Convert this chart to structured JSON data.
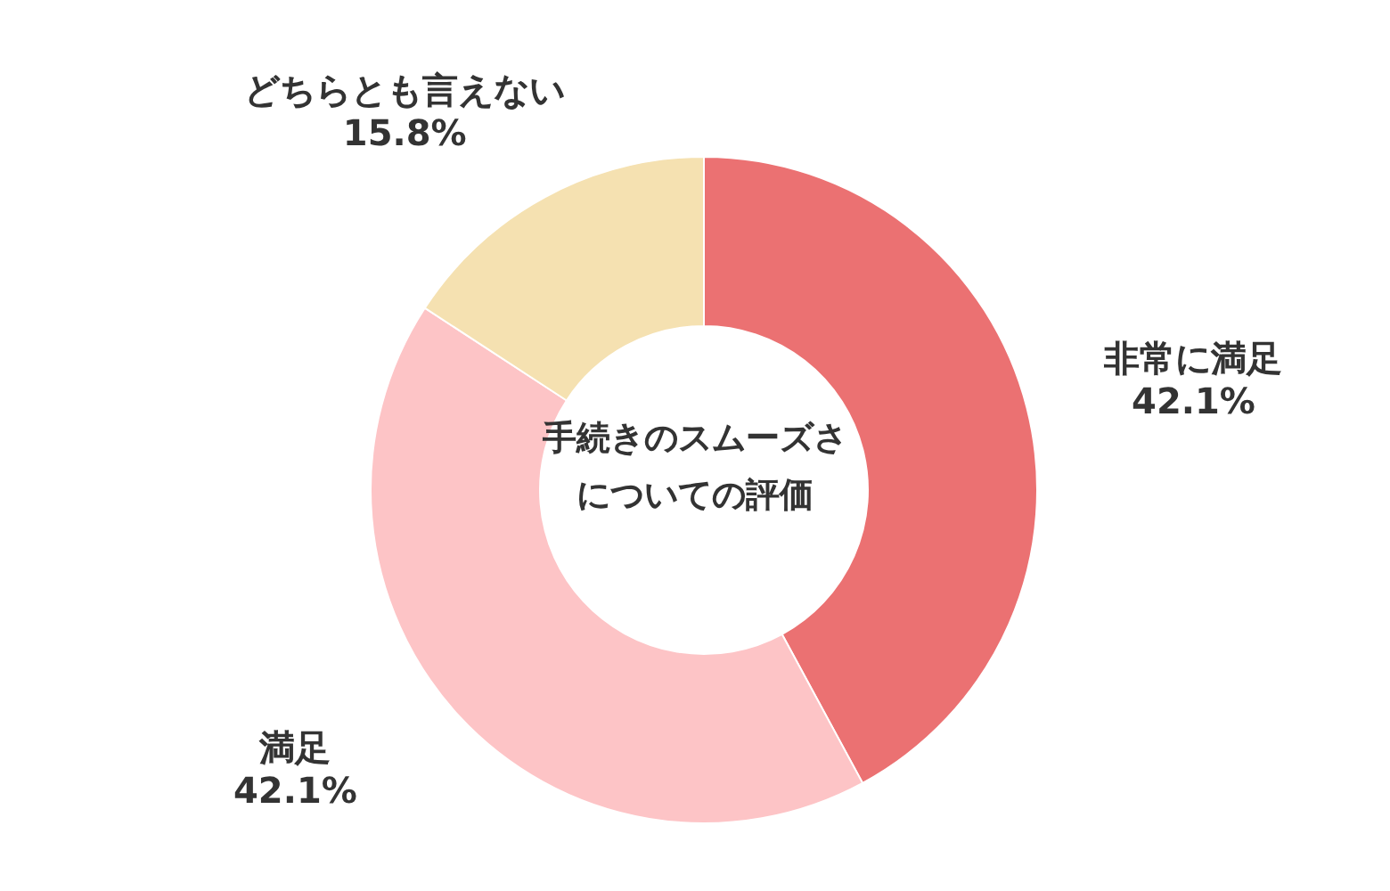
{
  "chart_data": {
    "type": "donut",
    "title": "手続きのスムーズさについての評価",
    "categories": [
      "非常に満足",
      "満足",
      "どちらとも言えない"
    ],
    "values": [
      42.1,
      42.1,
      15.8
    ],
    "value_labels": [
      "42.1%",
      "42.1%",
      "15.8%"
    ],
    "colors": [
      "#eb7172",
      "#fdc4c6",
      "#f5e1b1"
    ],
    "legend": false
  }
}
